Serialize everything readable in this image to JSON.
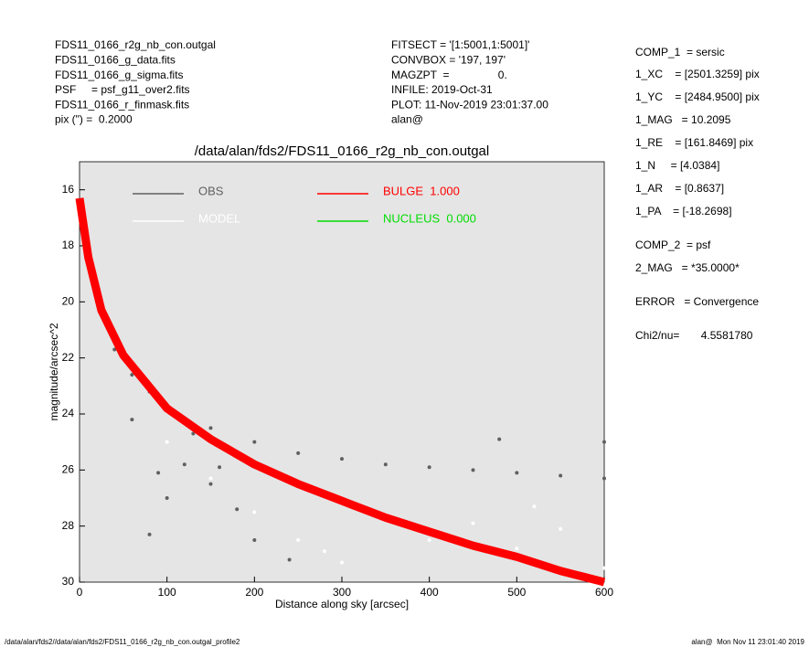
{
  "header": {
    "left": [
      "FDS11_0166_r2g_nb_con.outgal",
      "FDS11_0166_g_data.fits",
      "FDS11_0166_g_sigma.fits",
      "PSF     = psf_g11_over2.fits",
      "FDS11_0166_r_finmask.fits",
      "pix (\") =  0.2000"
    ],
    "middle": [
      "FITSECT = '[1:5001,1:5001]'",
      "CONVBOX = '197, 197'",
      "MAGZPT  =                0.",
      "INFILE: 2019-Oct-31",
      "PLOT: 11-Nov-2019 23:01:37.00",
      "alan@"
    ]
  },
  "panel": [
    "COMP_1  = sersic",
    "1_XC    = [2501.3259] pix",
    "1_YC    = [2484.9500] pix",
    "1_MAG   = 10.2095",
    "1_RE    = [161.8469] pix",
    "1_N     = [4.0384]",
    "1_AR    = [0.8637]",
    "1_PA    = [-18.2698]",
    "COMP_2  = psf",
    "2_MAG   = *35.0000*",
    "ERROR   = Convergence",
    "Chi2/nu=       4.5581780"
  ],
  "footer": {
    "left": "/data/alan/fds2//data/alan/fds2/FDS11_0166_r2g_nb_con.outgal_profile2",
    "right": "alan@  Mon Nov 11 23:01:40 2019"
  },
  "chart_data": {
    "type": "scatter",
    "title": "/data/alan/fds2/FDS11_0166_r2g_nb_con.outgal",
    "xlabel": "Distance along sky [arcsec]",
    "ylabel": "magnitude/arcsec^2",
    "xlim": [
      0,
      600
    ],
    "xticks": [
      0,
      100,
      200,
      300,
      400,
      500,
      600
    ],
    "ylim": [
      15,
      30
    ],
    "y_inverted": true,
    "yticks": [
      16,
      18,
      20,
      22,
      24,
      26,
      28,
      30
    ],
    "background": "#e5e5e5",
    "series": [
      {
        "name": "OBS",
        "color": "#606060",
        "marker": "point",
        "x": [
          2,
          10,
          20,
          40,
          60,
          80,
          100,
          150,
          200,
          250,
          300,
          350,
          400,
          450,
          500,
          550,
          600,
          150,
          200,
          100,
          80,
          160,
          480,
          600,
          120,
          180,
          240,
          60,
          90,
          130
        ],
        "values": [
          16.5,
          18.5,
          20,
          21.7,
          22.6,
          23.2,
          23.7,
          24.5,
          25,
          25.4,
          25.6,
          25.8,
          25.9,
          26,
          26.1,
          26.2,
          26.3,
          26.5,
          28.5,
          27,
          28.3,
          25.9,
          24.9,
          25,
          25.8,
          27.4,
          29.2,
          24.2,
          26.1,
          24.7
        ]
      },
      {
        "name": "MODEL",
        "color": "#ffffff",
        "marker": "point",
        "x": [
          100,
          150,
          200,
          250,
          300,
          400,
          500,
          600,
          350,
          450,
          550,
          280,
          520
        ],
        "values": [
          25,
          26.3,
          27.5,
          28.5,
          29.3,
          28.5,
          28.8,
          29.5,
          27.6,
          27.9,
          28.1,
          28.9,
          27.3
        ]
      },
      {
        "name": "BULGE  1.000",
        "color": "#ff0000",
        "marker": "line",
        "x": [
          0,
          10,
          25,
          50,
          100,
          150,
          200,
          250,
          300,
          350,
          400,
          450,
          500,
          550,
          600
        ],
        "values": [
          16.3,
          18.4,
          20.3,
          21.9,
          23.8,
          24.9,
          25.8,
          26.5,
          27.1,
          27.7,
          28.2,
          28.7,
          29.1,
          29.6,
          30
        ]
      },
      {
        "name": "NUCLEUS  0.000",
        "color": "#00dd00",
        "marker": "line",
        "x": [],
        "values": []
      }
    ]
  }
}
